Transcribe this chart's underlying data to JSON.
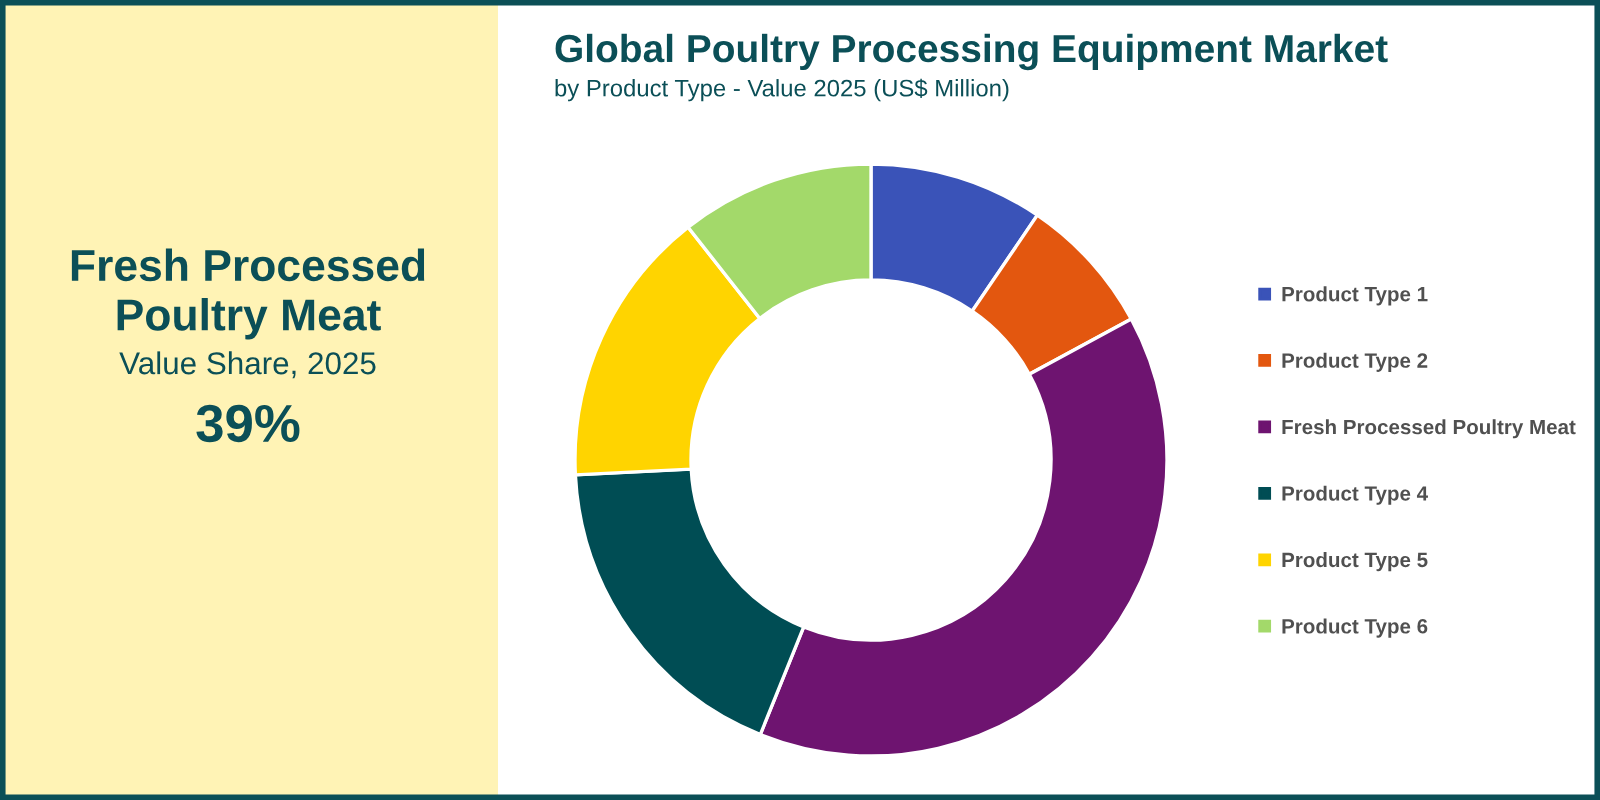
{
  "chart_data": [
    {
      "type": "other",
      "title": "Fresh Processed Poultry Meat",
      "subtitle": "Value Share, 2025",
      "annotations": [
        "39%"
      ]
    },
    {
      "type": "donut",
      "title": "Global Poultry Processing Equipment Market",
      "subtitle": "by Product Type - Value 2025 (US$ Million)",
      "categories": [
        "Product Type 1",
        "Product Type 2",
        "Fresh Processed Poultry Meat",
        "Product Type 4",
        "Product Type 5",
        "Product Type 6"
      ],
      "values": [
        9.5,
        7.6,
        39,
        18.1,
        15.2,
        10.6
      ],
      "colors": [
        "#3a53b8",
        "#e3570f",
        "#6e1470",
        "#004d54",
        "#ffd400",
        "#a3d96a"
      ],
      "legend": "right"
    }
  ]
}
